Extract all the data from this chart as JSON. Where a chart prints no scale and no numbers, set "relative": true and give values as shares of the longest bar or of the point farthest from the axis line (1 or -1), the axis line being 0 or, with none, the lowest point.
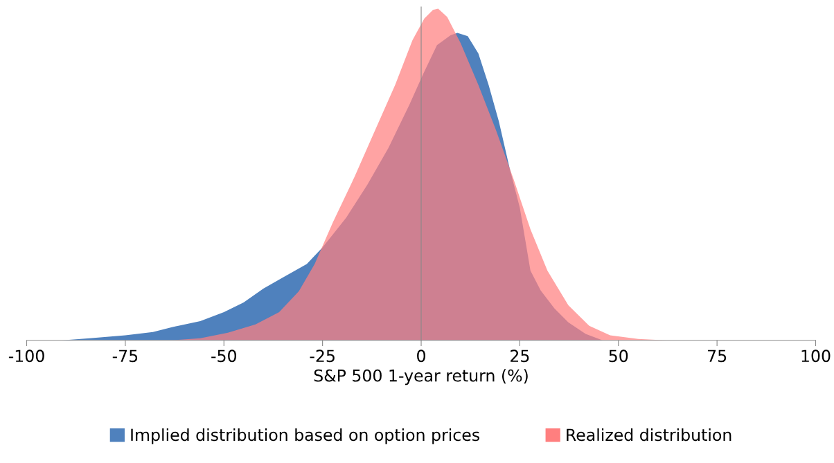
{
  "chart_data": {
    "type": "area",
    "relative": true,
    "xlabel": "S&P 500 1-year return (%)",
    "xlim": [
      -100,
      100
    ],
    "xticks": [
      -100,
      -75,
      -50,
      -25,
      0,
      25,
      50,
      75,
      100
    ],
    "legend": "bottom",
    "tick_labels": "x",
    "series": [
      {
        "name": "Implied distribution based on option prices",
        "color": "#4f81bd",
        "x": [
          -91,
          -84,
          -75,
          -68,
          -63,
          -56,
          -50,
          -45,
          -40,
          -35,
          -29,
          -25,
          -19,
          -13.6,
          -8.3,
          -3,
          0.4,
          4,
          7.5,
          9.2,
          11.8,
          14.5,
          17.1,
          19.7,
          22.4,
          25,
          27.7,
          30.3,
          33.8,
          37.3,
          41.7,
          46
        ],
        "values": [
          0,
          0.006,
          0.015,
          0.025,
          0.04,
          0.058,
          0.085,
          0.114,
          0.156,
          0.19,
          0.23,
          0.28,
          0.37,
          0.47,
          0.58,
          0.71,
          0.8,
          0.89,
          0.92,
          0.927,
          0.917,
          0.865,
          0.77,
          0.66,
          0.52,
          0.4,
          0.21,
          0.15,
          0.096,
          0.054,
          0.019,
          0
        ]
      },
      {
        "name": "Realized distribution",
        "color": "#ff7f7f",
        "x": [
          -63,
          -56,
          -49,
          -42,
          -36,
          -31,
          -27,
          -22.4,
          -17,
          -12,
          -6.6,
          -2.2,
          0.8,
          3,
          4.3,
          6.6,
          10,
          14.5,
          18.9,
          23.3,
          27.7,
          32,
          37.3,
          42.6,
          47.9,
          55,
          62
        ],
        "values": [
          0,
          0.006,
          0.023,
          0.048,
          0.085,
          0.148,
          0.23,
          0.355,
          0.49,
          0.625,
          0.77,
          0.905,
          0.97,
          0.996,
          1,
          0.975,
          0.896,
          0.77,
          0.636,
          0.49,
          0.335,
          0.21,
          0.106,
          0.044,
          0.015,
          0.004,
          0
        ]
      }
    ]
  }
}
